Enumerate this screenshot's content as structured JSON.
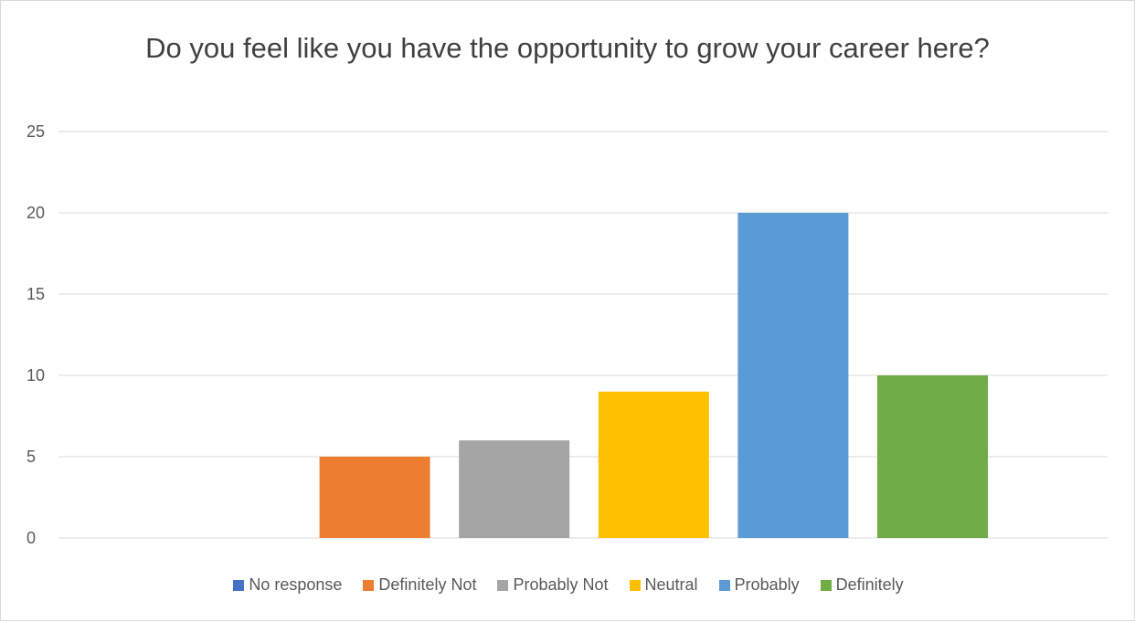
{
  "chart_data": {
    "type": "bar",
    "title": "Do you feel like you have the opportunity to grow your career here?",
    "xlabel": "",
    "ylabel": "",
    "ylim": [
      0,
      25
    ],
    "yticks": [
      0,
      5,
      10,
      15,
      20,
      25
    ],
    "grid": true,
    "legend_position": "bottom",
    "categories": [
      ""
    ],
    "series": [
      {
        "name": "No response",
        "values": [
          0
        ],
        "color": "#4472C4"
      },
      {
        "name": "Definitely Not",
        "values": [
          5
        ],
        "color": "#ED7D31"
      },
      {
        "name": "Probably Not",
        "values": [
          6
        ],
        "color": "#A5A5A5"
      },
      {
        "name": "Neutral",
        "values": [
          9
        ],
        "color": "#FFC000"
      },
      {
        "name": "Probably",
        "values": [
          20
        ],
        "color": "#5B9BD5"
      },
      {
        "name": "Definitely",
        "values": [
          10
        ],
        "color": "#70AD47"
      }
    ]
  }
}
